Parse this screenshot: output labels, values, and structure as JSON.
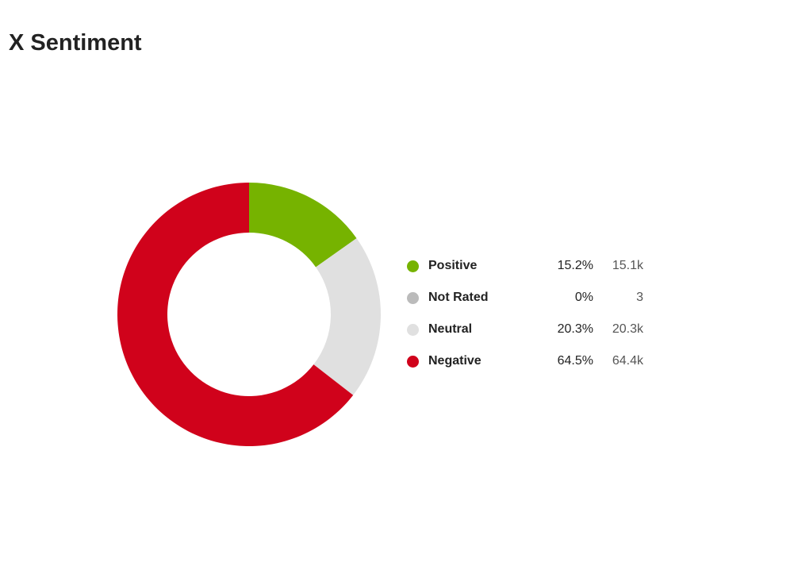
{
  "chart_data": {
    "type": "pie",
    "title": "X Sentiment",
    "donut": true,
    "legend_position": "right",
    "slices": [
      {
        "label": "Positive",
        "percent": 15.2,
        "percent_label": "15.2%",
        "count_label": "15.1k",
        "color": "#76b300"
      },
      {
        "label": "Not Rated",
        "percent": 0,
        "percent_label": "0%",
        "count_label": "3",
        "color": "#bbbbbb"
      },
      {
        "label": "Neutral",
        "percent": 20.3,
        "percent_label": "20.3%",
        "count_label": "20.3k",
        "color": "#e0e0e0"
      },
      {
        "label": "Negative",
        "percent": 64.5,
        "percent_label": "64.5%",
        "count_label": "64.4k",
        "color": "#d0021b"
      }
    ]
  }
}
